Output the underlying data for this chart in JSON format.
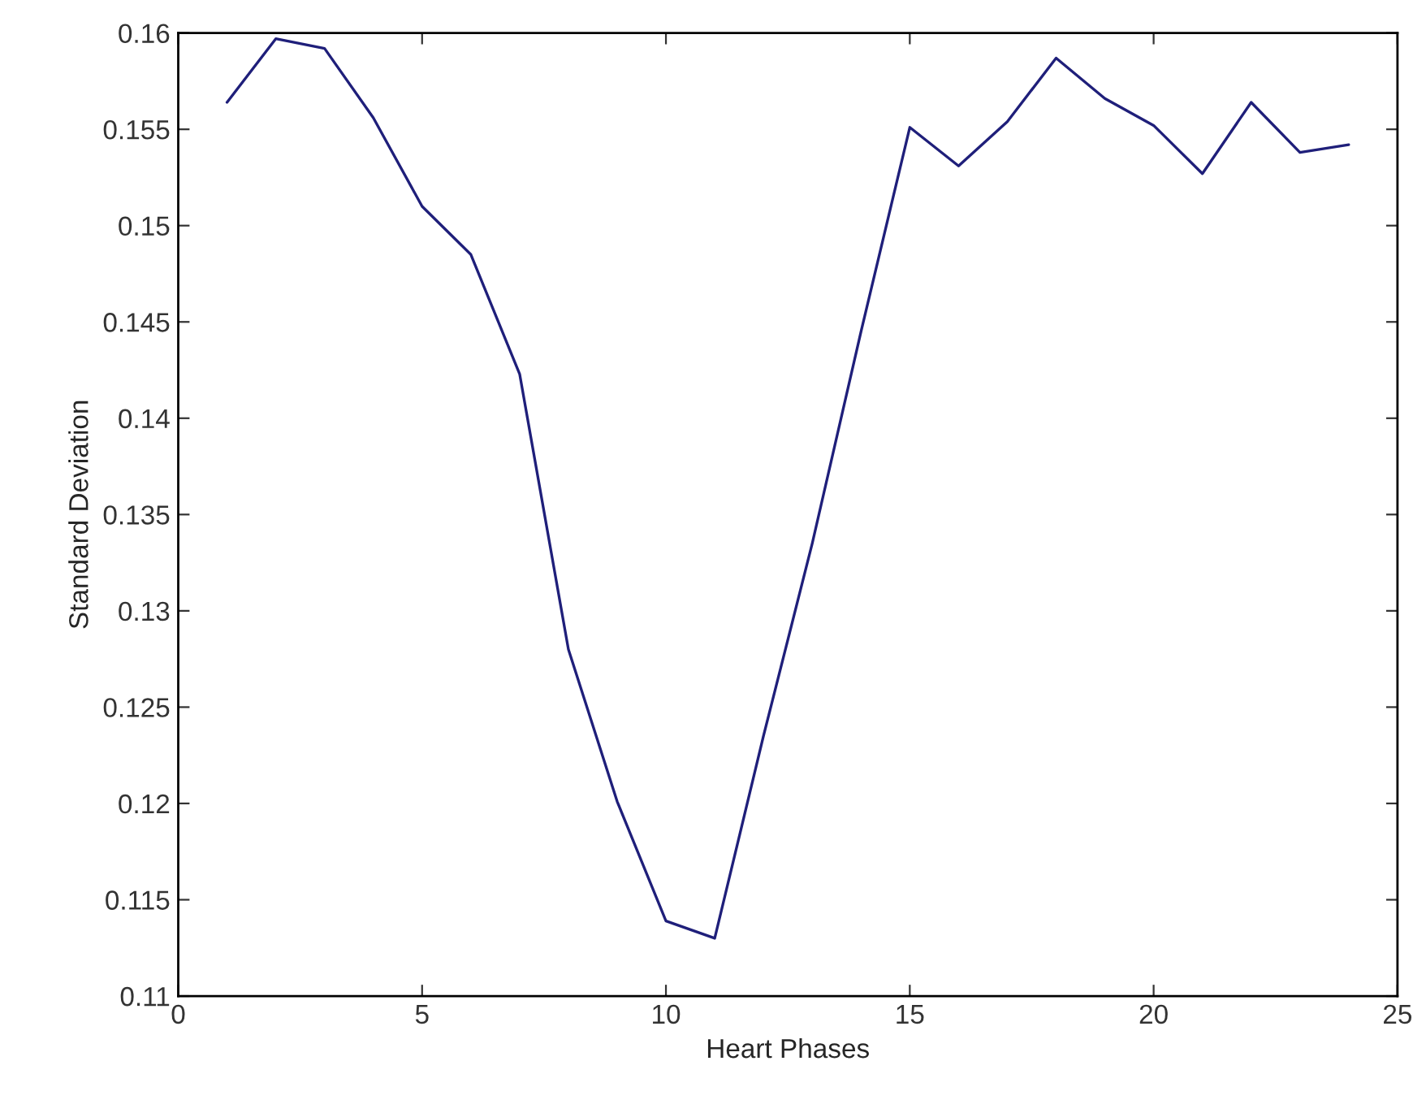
{
  "chart_data": {
    "type": "line",
    "xlabel": "Heart Phases",
    "ylabel": "Standard Deviation",
    "x": [
      1,
      2,
      3,
      4,
      5,
      6,
      7,
      8,
      9,
      10,
      11,
      12,
      13,
      14,
      15,
      16,
      17,
      18,
      19,
      20,
      21,
      22,
      23,
      24
    ],
    "series": [
      {
        "color": "#1f1f7a",
        "values": [
          0.1564,
          0.1597,
          0.1592,
          0.1556,
          0.151,
          0.1485,
          0.1423,
          0.128,
          0.1201,
          0.1139,
          0.113,
          0.1235,
          0.1335,
          0.1445,
          0.1551,
          0.1531,
          0.1554,
          0.1587,
          0.1566,
          0.1552,
          0.1527,
          0.1564,
          0.1538,
          0.1542
        ]
      }
    ],
    "xlim": [
      0,
      25
    ],
    "xticks": [
      0,
      5,
      10,
      15,
      20,
      25
    ],
    "ylim": [
      0.11,
      0.16
    ],
    "yticks": [
      0.11,
      0.115,
      0.12,
      0.125,
      0.13,
      0.135,
      0.14,
      0.145,
      0.15,
      0.155,
      0.16
    ],
    "grid": false
  }
}
